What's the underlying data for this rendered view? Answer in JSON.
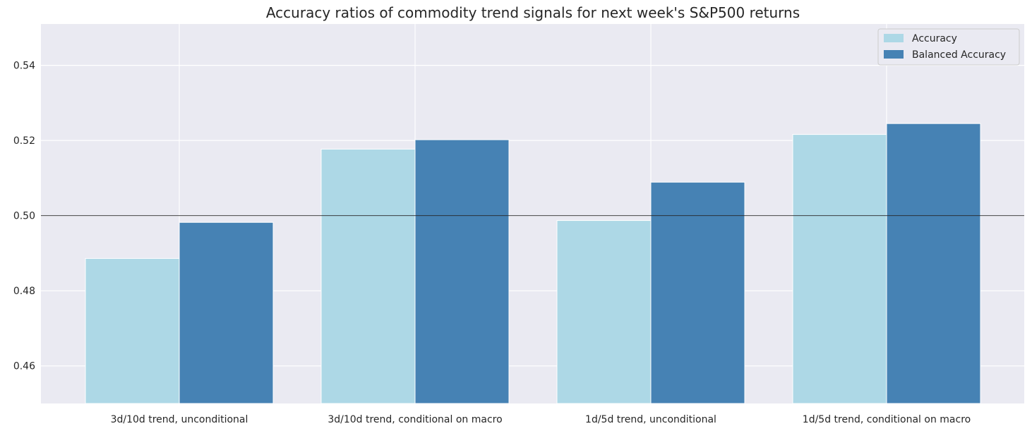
{
  "chart_data": {
    "type": "bar",
    "title": "Accuracy ratios of commodity trend signals for next week's S&P500 returns",
    "xlabel": "",
    "ylabel": "",
    "categories": [
      "3d/10d trend, unconditional",
      "3d/10d trend, conditional on macro",
      "1d/5d trend, unconditional",
      "1d/5d trend, conditional on macro"
    ],
    "series": [
      {
        "name": "Accuracy",
        "color": "#add8e6",
        "values": [
          0.4886,
          0.5177,
          0.4987,
          0.5216
        ]
      },
      {
        "name": "Balanced Accuracy",
        "color": "#4682b4",
        "values": [
          0.4982,
          0.5202,
          0.5089,
          0.5245
        ]
      }
    ],
    "ylim": [
      0.45,
      0.551
    ],
    "yticks": [
      0.46,
      0.48,
      0.5,
      0.52,
      0.54
    ],
    "ytick_labels": [
      "0.46",
      "0.48",
      "0.50",
      "0.52",
      "0.54"
    ],
    "reference_line": 0.5,
    "grid": true,
    "legend_position": "top-right"
  }
}
